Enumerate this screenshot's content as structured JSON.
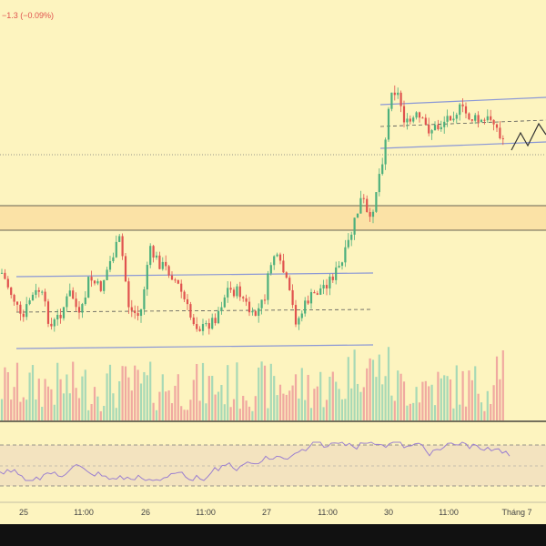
{
  "legend": {
    "change_text": "−1.3 (−0.09%)"
  },
  "colors": {
    "background": "#fdf4bf",
    "up": "#4caf7c",
    "down": "#e0524e",
    "volume_up": "#a7d9b6",
    "volume_down": "#f0a9a0",
    "channel": "#8a97d6",
    "zone_fill": "#fbe2a6",
    "rsi_line": "#9b7fd0",
    "rsi_band": "#f3e3bf",
    "axis_bg": "#111111"
  },
  "chart_data": {
    "type": "candlestick",
    "x_ticks": [
      "25",
      "11:00",
      "26",
      "11:00",
      "27",
      "11:00",
      "30",
      "11:00",
      "Tháng 7"
    ],
    "grid": false,
    "indicators": [
      "volume",
      "rsi"
    ]
  }
}
